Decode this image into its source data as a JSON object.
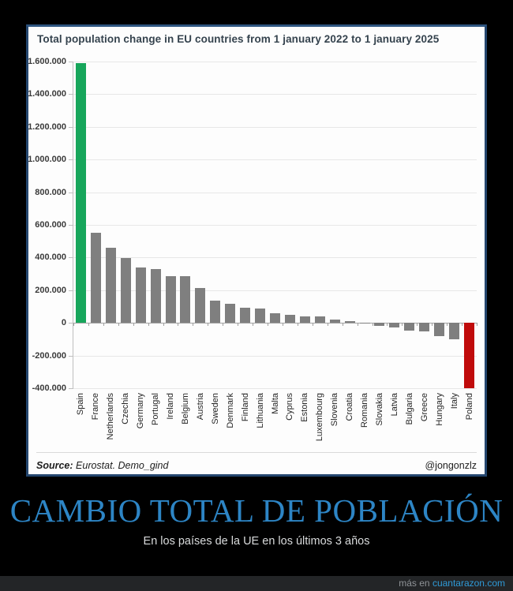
{
  "chart": {
    "title": "Total population change in EU countries from 1 january 2022 to 1 january 2025",
    "source_label": "Source:",
    "source_text": "Eurostat. Demo_gind",
    "credit": "@jongonzlz"
  },
  "chart_data": {
    "type": "bar",
    "title": "Total population change in EU countries from 1 january 2022 to 1 january 2025",
    "xlabel": "",
    "ylabel": "",
    "ylim": [
      -400000,
      1600000
    ],
    "grid": true,
    "legend": false,
    "categories": [
      "Spain",
      "France",
      "Netherlands",
      "Czechia",
      "Germany",
      "Portugal",
      "Ireland",
      "Belgium",
      "Austria",
      "Sweden",
      "Denmark",
      "Finland",
      "Lithuania",
      "Malta",
      "Cyprus",
      "Estonia",
      "Luxembourg",
      "Slovenia",
      "Croatia",
      "Romania",
      "Slovakia",
      "Latvia",
      "Bulgaria",
      "Greece",
      "Hungary",
      "Italy",
      "Poland"
    ],
    "values": [
      1590000,
      550000,
      460000,
      395000,
      340000,
      330000,
      285000,
      285000,
      215000,
      135000,
      115000,
      95000,
      90000,
      60000,
      50000,
      40000,
      40000,
      20000,
      10000,
      3000,
      -20000,
      -30000,
      -45000,
      -50000,
      -80000,
      -100000,
      -400000
    ],
    "yticks": [
      {
        "value": 1600000,
        "label": "1.600.000"
      },
      {
        "value": 1400000,
        "label": "1.400.000"
      },
      {
        "value": 1200000,
        "label": "1.200.000"
      },
      {
        "value": 1000000,
        "label": "1.000.000"
      },
      {
        "value": 800000,
        "label": "800.000"
      },
      {
        "value": 600000,
        "label": "600.000"
      },
      {
        "value": 400000,
        "label": "400.000"
      },
      {
        "value": 200000,
        "label": "200.000"
      },
      {
        "value": 0,
        "label": "0"
      },
      {
        "value": -200000,
        "label": "-200.000"
      },
      {
        "value": -400000,
        "label": "-400.000"
      }
    ],
    "default_bar_color": "#7f7f7f",
    "highlighted_bars": {
      "Spain": "#17a65b",
      "Poland": "#c00b0b"
    }
  },
  "caption": {
    "title": "CAMBIO TOTAL DE POBLACIÓN",
    "subtitle": "En los países de la UE en los últimos 3 años"
  },
  "page": {
    "watermark_prefix": "más en",
    "watermark_link": "cuantarazon.com"
  }
}
